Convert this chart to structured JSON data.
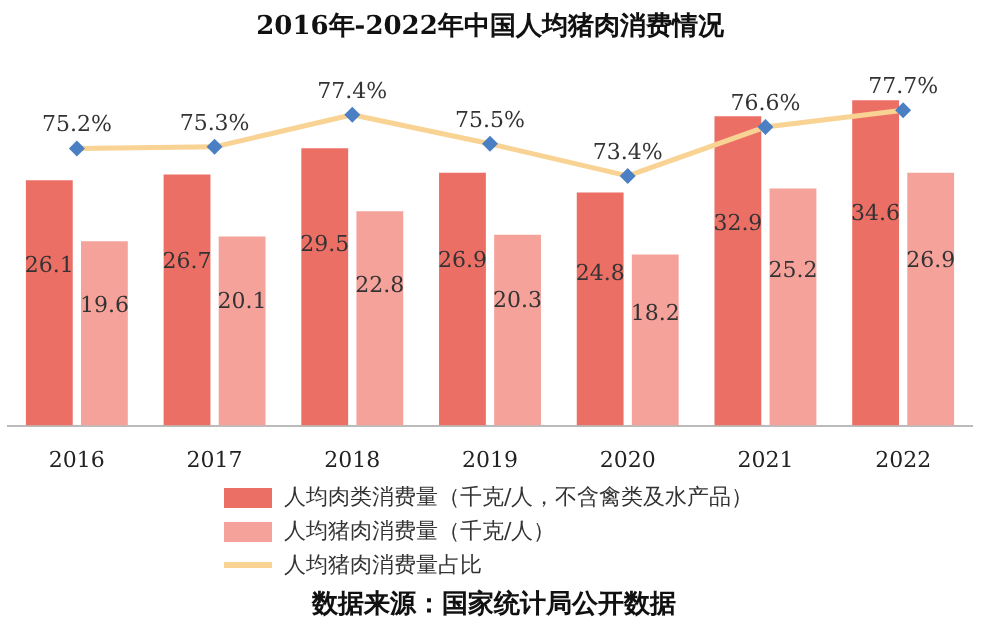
{
  "chart_data": {
    "type": "bar",
    "title": "2016年-2022年中国人均猪肉消费情况",
    "categories": [
      "2016",
      "2017",
      "2018",
      "2019",
      "2020",
      "2021",
      "2022"
    ],
    "series": [
      {
        "name": "人均肉类消费量（千克/人，不含禽类及水产品）",
        "color": "#ec6f66",
        "values": [
          26.1,
          26.7,
          29.5,
          26.9,
          24.8,
          32.9,
          34.6
        ]
      },
      {
        "name": "人均猪肉消费量（千克/人）",
        "color": "#f5a29b",
        "values": [
          19.6,
          20.1,
          22.8,
          20.3,
          18.2,
          25.2,
          26.9
        ]
      },
      {
        "name": "人均猪肉消费量占比",
        "type": "line",
        "axis": "y2",
        "color": "#f8d393",
        "values": [
          75.2,
          75.3,
          77.4,
          75.5,
          73.4,
          76.6,
          77.7
        ],
        "value_labels": [
          "75.2%",
          "75.3%",
          "77.4%",
          "75.5%",
          "73.4%",
          "76.6%",
          "77.7%"
        ]
      }
    ],
    "tick_labels": "x",
    "grid": false,
    "legend": "bottom",
    "marker": "diamond",
    "data_labels": true,
    "annotations": [
      "数据来源：国家统计局公开数据"
    ]
  }
}
